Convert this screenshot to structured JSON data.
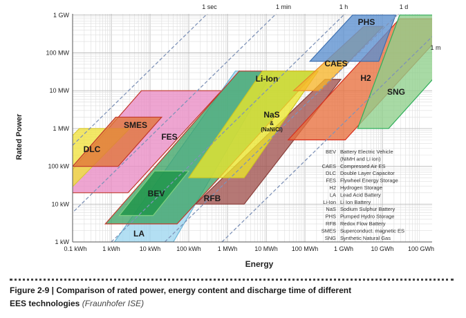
{
  "chart_data": {
    "type": "area",
    "xlabel": "Energy",
    "ylabel": "Rated Power",
    "x_unit": "kWh",
    "y_unit": "kW",
    "x_scale": "log",
    "y_scale": "log",
    "xlim": [
      0.1,
      100000000
    ],
    "ylim": [
      1,
      1000000
    ],
    "grid": true,
    "x_ticks": [
      {
        "value": 0.1,
        "label": "0.1 kWh"
      },
      {
        "value": 1,
        "label": "1 kWh"
      },
      {
        "value": 10,
        "label": "10 kWh"
      },
      {
        "value": 100,
        "label": "100 kWh"
      },
      {
        "value": 1000,
        "label": "1 MWh"
      },
      {
        "value": 10000,
        "label": "10 MWh"
      },
      {
        "value": 100000,
        "label": "100 MWh"
      },
      {
        "value": 1000000,
        "label": "1 GWh"
      },
      {
        "value": 10000000,
        "label": "10 GWh"
      },
      {
        "value": 100000000,
        "label": "100 GWh"
      }
    ],
    "y_ticks": [
      {
        "value": 1,
        "label": "1 kW"
      },
      {
        "value": 10,
        "label": "10 kW"
      },
      {
        "value": 100,
        "label": "100 kW"
      },
      {
        "value": 1000,
        "label": "1 MW"
      },
      {
        "value": 10000,
        "label": "10 MW"
      },
      {
        "value": 100000,
        "label": "100 MW"
      },
      {
        "value": 1000000,
        "label": "1 GW"
      }
    ],
    "discharge_time_lines": [
      {
        "label": "1 sec",
        "hours": 0.000278
      },
      {
        "label": "1 min",
        "hours": 0.0167
      },
      {
        "label": "1 h",
        "hours": 1
      },
      {
        "label": "1 d",
        "hours": 24
      },
      {
        "label": "1 m",
        "hours": 720
      }
    ],
    "regions": [
      {
        "id": "FES",
        "label": "FES",
        "color": "#e98cc4",
        "edge": "#c0392b",
        "vertices": [
          [
            6,
            10000
          ],
          [
            700,
            10000
          ],
          [
            2.7,
            20
          ],
          [
            0.03,
            20
          ]
        ]
      },
      {
        "id": "DLC",
        "label": "DLC",
        "color": "#f0e23c",
        "edge": "#d9c93a",
        "vertices": [
          [
            0.15,
            1000
          ],
          [
            3,
            1000
          ],
          [
            0.07,
            20
          ],
          [
            0.0035,
            20
          ]
        ]
      },
      {
        "id": "SMES",
        "label": "SMES",
        "color": "#e0763a",
        "edge": "#c0392b",
        "vertices": [
          [
            1.3,
            2000
          ],
          [
            20,
            2000
          ],
          [
            1.5,
            100
          ],
          [
            0.1,
            100
          ]
        ]
      },
      {
        "id": "LA",
        "label": "LA",
        "color": "#9dd6ef",
        "edge": "#6bb6d8",
        "vertices": [
          [
            1.2,
            1
          ],
          [
            40,
            1
          ],
          [
            15000,
            33000
          ],
          [
            1600,
            33000
          ]
        ]
      },
      {
        "id": "Li-Ion",
        "label": "Li-Ion",
        "color": "#3fa467",
        "edge": "#c0392b",
        "vertices": [
          [
            2000,
            33000
          ],
          [
            200000,
            33000
          ],
          [
            50,
            3
          ],
          [
            0.7,
            3
          ]
        ]
      },
      {
        "id": "BEV",
        "label": "BEV",
        "color": "#1c9446",
        "edge": "#7fd07f",
        "vertices": [
          [
            13,
            75
          ],
          [
            100,
            75
          ],
          [
            12,
            5
          ],
          [
            1.6,
            5
          ]
        ]
      },
      {
        "id": "RFB",
        "label": "RFB",
        "color": "#a0524e",
        "edge": "#8a3f3b",
        "vertices": [
          [
            330000,
            20000
          ],
          [
            850000,
            20000
          ],
          [
            2700,
            10
          ],
          [
            150,
            10
          ]
        ]
      },
      {
        "id": "NaS",
        "label": "NaS",
        "sublabel_1": "&",
        "sublabel_2": "(NaNiCl)",
        "color": "#eae52c",
        "edge": "#cfc622",
        "vertices": [
          [
            8000,
            33000
          ],
          [
            220000,
            33000
          ],
          [
            2700,
            50
          ],
          [
            100,
            50
          ]
        ]
      },
      {
        "id": "H2",
        "label": "H2",
        "color": "#e8703e",
        "edge": "#d62f1f",
        "vertices": [
          [
            28000000,
            800000
          ],
          [
            200000000,
            800000
          ],
          [
            200000000,
            170000
          ],
          [
            1100000,
            500
          ],
          [
            37000,
            500
          ]
        ]
      },
      {
        "id": "SNG",
        "label": "SNG",
        "color": "#8fd08c",
        "edge": "#2fae5a",
        "vertices": [
          [
            28000000,
            1000000
          ],
          [
            200000000,
            1000000
          ],
          [
            200000000,
            20000
          ],
          [
            14500000,
            1000
          ],
          [
            2300000,
            1000
          ]
        ]
      },
      {
        "id": "CAES",
        "label": "CAES",
        "color": "#f6b52a",
        "edge": "#e8862a",
        "vertices": [
          [
            3300000,
            500000
          ],
          [
            10500000,
            500000
          ],
          [
            250000,
            10000
          ],
          [
            51000,
            10000
          ]
        ]
      },
      {
        "id": "PHS",
        "label": "PHS",
        "color": "#5b8fd0",
        "edge": "#3d6fb0",
        "vertices": [
          [
            1700000,
            1000000
          ],
          [
            22000000,
            1000000
          ],
          [
            8100000,
            60000
          ],
          [
            135000,
            60000
          ]
        ]
      }
    ],
    "legend": [
      {
        "abbr": "BEV",
        "text": "Battery  Electric Vehicle"
      },
      {
        "abbr": "",
        "text": "(NiMH and Li ion)"
      },
      {
        "abbr": "CAES",
        "text": "Compressed Air ES"
      },
      {
        "abbr": "DLC",
        "text": "Double Layer Capacitor"
      },
      {
        "abbr": "FES",
        "text": "Flywheel  Energy Storage"
      },
      {
        "abbr": "H2",
        "text": "Hydrogen Storage"
      },
      {
        "abbr": "LA",
        "text": "Lead Acid Battery"
      },
      {
        "abbr": "Li-Ion",
        "text": "Li Ion Battery"
      },
      {
        "abbr": "NaS",
        "text": "Sodium Sulphur Battery"
      },
      {
        "abbr": "PHS",
        "text": "Pumped Hydro Storage"
      },
      {
        "abbr": "RFB",
        "text": "Redox Flow  Battery"
      },
      {
        "abbr": "SMES",
        "text": "Superconduct. magnetic ES"
      },
      {
        "abbr": "SNG",
        "text": "Synthetic Natural Gas"
      }
    ],
    "legend_placement": "bottom-right"
  },
  "caption": {
    "line1": "Figure 2-9 | Comparison of rated power, energy content and discharge time of different",
    "line2": "EES technologies ",
    "source": "(Fraunhofer ISE)"
  }
}
